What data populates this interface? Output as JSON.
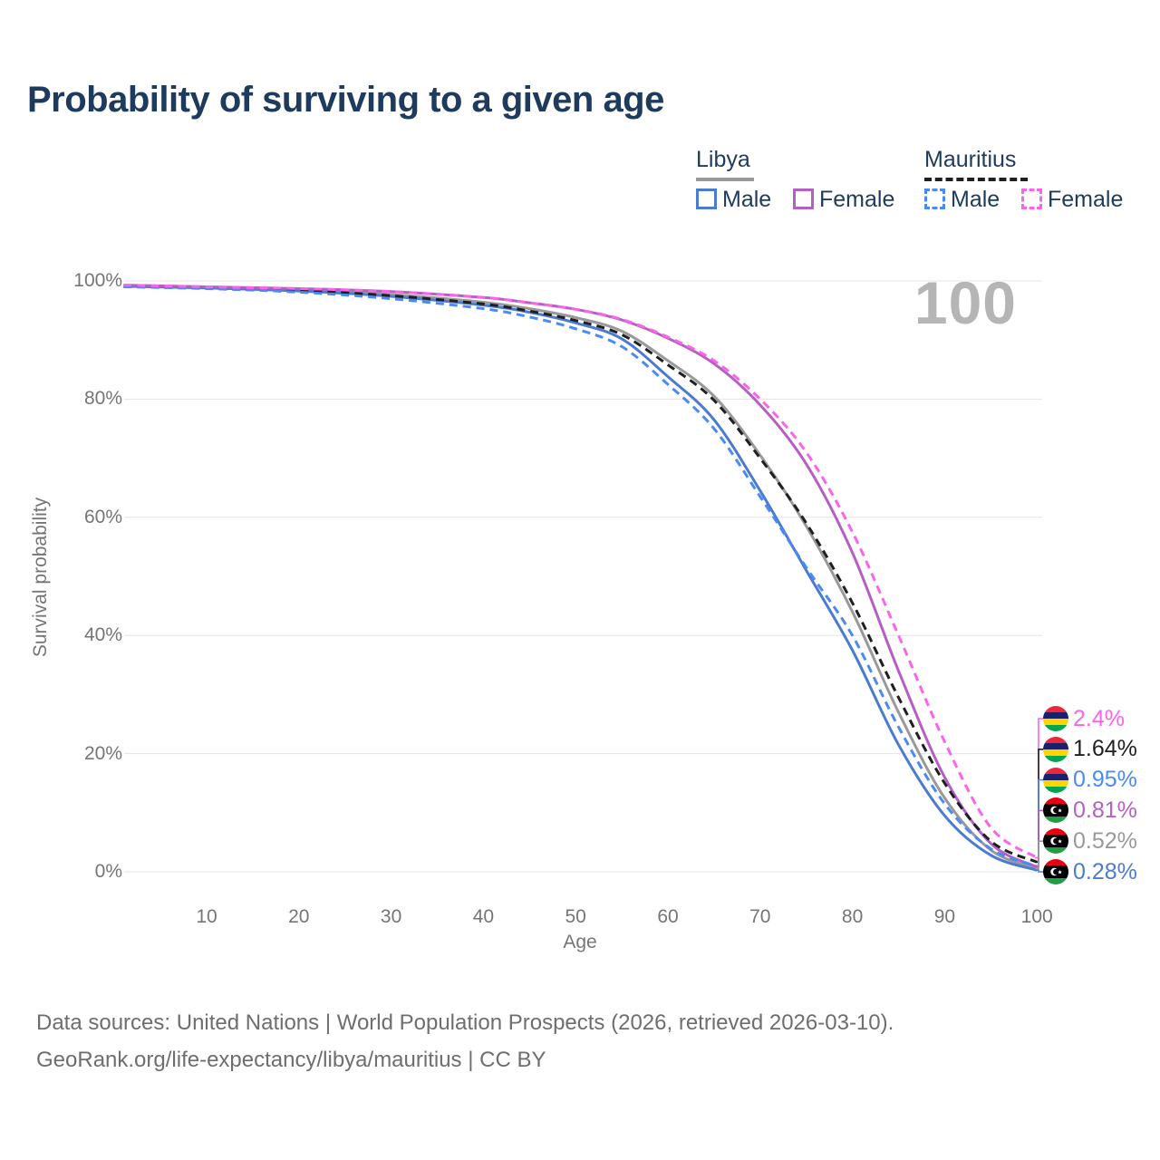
{
  "title": "Probability of surviving to a given age",
  "watermark": "100",
  "legend": {
    "groups": [
      {
        "name": "Libya",
        "style": "solid",
        "underline_color": "#999999",
        "entries": [
          {
            "label": "Male",
            "color": "#4a7bd0"
          },
          {
            "label": "Female",
            "color": "#b55fc4"
          }
        ]
      },
      {
        "name": "Mauritius",
        "style": "dashed",
        "underline_color": "#1f1f1f",
        "entries": [
          {
            "label": "Male",
            "color": "#4a8af4"
          },
          {
            "label": "Female",
            "color": "#fa64ea"
          }
        ]
      }
    ]
  },
  "chart_data": {
    "type": "line",
    "title": "Probability of surviving to a given age",
    "xlabel": "Age",
    "ylabel": "Survival probability",
    "xlim": [
      1,
      100
    ],
    "ylim": [
      0,
      100
    ],
    "grid": "horizontal",
    "legend_position": "top-right",
    "xticks": [
      10,
      20,
      30,
      40,
      50,
      60,
      70,
      80,
      90,
      100
    ],
    "yticks": [
      {
        "value": 0,
        "label": "0%"
      },
      {
        "value": 20,
        "label": "20%"
      },
      {
        "value": 40,
        "label": "40%"
      },
      {
        "value": 60,
        "label": "60%"
      },
      {
        "value": 80,
        "label": "80%"
      },
      {
        "value": 100,
        "label": "100%"
      }
    ],
    "series": [
      {
        "id": "libya-all",
        "name": "Libya — Both sexes",
        "country": "Libya",
        "sex": "both",
        "line": "solid",
        "color": "#999999",
        "end_value": 0.52,
        "end_label": "0.52%",
        "points": [
          [
            1,
            99.2
          ],
          [
            10,
            98.9
          ],
          [
            20,
            98.5
          ],
          [
            30,
            97.7
          ],
          [
            40,
            96.4
          ],
          [
            45,
            95.3
          ],
          [
            50,
            93.8
          ],
          [
            55,
            91.5
          ],
          [
            60,
            86.5
          ],
          [
            65,
            80.5
          ],
          [
            70,
            70.5
          ],
          [
            75,
            58.5
          ],
          [
            80,
            44.0
          ],
          [
            85,
            27.0
          ],
          [
            90,
            12.5
          ],
          [
            95,
            3.7
          ],
          [
            100,
            0.52
          ]
        ]
      },
      {
        "id": "libya-male",
        "name": "Libya — Male",
        "country": "Libya",
        "sex": "male",
        "line": "solid",
        "color": "#4a7bd0",
        "end_value": 0.28,
        "end_label": "0.28%",
        "points": [
          [
            1,
            99.1
          ],
          [
            10,
            98.8
          ],
          [
            20,
            98.3
          ],
          [
            30,
            97.4
          ],
          [
            40,
            95.9
          ],
          [
            45,
            94.7
          ],
          [
            50,
            92.9
          ],
          [
            55,
            90.2
          ],
          [
            60,
            83.8
          ],
          [
            65,
            76.5
          ],
          [
            70,
            64.5
          ],
          [
            75,
            51.0
          ],
          [
            80,
            37.5
          ],
          [
            85,
            21.5
          ],
          [
            90,
            9.5
          ],
          [
            95,
            2.8
          ],
          [
            100,
            0.28
          ]
        ]
      },
      {
        "id": "libya-female",
        "name": "Libya — Female",
        "country": "Libya",
        "sex": "female",
        "line": "solid",
        "color": "#b55fc4",
        "end_value": 0.81,
        "end_label": "0.81%",
        "points": [
          [
            1,
            99.3
          ],
          [
            10,
            99.0
          ],
          [
            20,
            98.7
          ],
          [
            30,
            98.2
          ],
          [
            40,
            97.2
          ],
          [
            45,
            96.3
          ],
          [
            50,
            95.2
          ],
          [
            55,
            93.4
          ],
          [
            60,
            90.3
          ],
          [
            65,
            86.0
          ],
          [
            70,
            79.0
          ],
          [
            75,
            69.0
          ],
          [
            80,
            54.0
          ],
          [
            85,
            34.0
          ],
          [
            90,
            16.0
          ],
          [
            95,
            4.8
          ],
          [
            100,
            0.81
          ]
        ]
      },
      {
        "id": "mauritius-all",
        "name": "Mauritius — Both sexes",
        "country": "Mauritius",
        "sex": "both",
        "line": "dashed",
        "color": "#1f1f1f",
        "end_value": 1.64,
        "end_label": "1.64%",
        "points": [
          [
            1,
            99.1
          ],
          [
            10,
            98.8
          ],
          [
            20,
            98.4
          ],
          [
            30,
            97.5
          ],
          [
            40,
            96.1
          ],
          [
            45,
            94.9
          ],
          [
            50,
            93.3
          ],
          [
            55,
            90.9
          ],
          [
            60,
            85.8
          ],
          [
            65,
            79.8
          ],
          [
            70,
            70.0
          ],
          [
            75,
            59.0
          ],
          [
            80,
            45.5
          ],
          [
            85,
            29.5
          ],
          [
            90,
            15.0
          ],
          [
            95,
            5.2
          ],
          [
            100,
            1.64
          ]
        ]
      },
      {
        "id": "mauritius-male",
        "name": "Mauritius — Male",
        "country": "Mauritius",
        "sex": "male",
        "line": "dashed",
        "color": "#4a8af4",
        "end_value": 0.95,
        "end_label": "0.95%",
        "points": [
          [
            1,
            99.0
          ],
          [
            10,
            98.7
          ],
          [
            20,
            98.1
          ],
          [
            30,
            97.0
          ],
          [
            40,
            95.3
          ],
          [
            45,
            93.9
          ],
          [
            50,
            91.9
          ],
          [
            55,
            88.9
          ],
          [
            60,
            82.5
          ],
          [
            65,
            75.0
          ],
          [
            70,
            63.5
          ],
          [
            75,
            51.5
          ],
          [
            80,
            40.0
          ],
          [
            85,
            24.5
          ],
          [
            90,
            11.5
          ],
          [
            95,
            3.9
          ],
          [
            100,
            0.95
          ]
        ]
      },
      {
        "id": "mauritius-female",
        "name": "Mauritius — Female",
        "country": "Mauritius",
        "sex": "female",
        "line": "dashed",
        "color": "#fa64ea",
        "end_value": 2.4,
        "end_label": "2.4%",
        "points": [
          [
            1,
            99.3
          ],
          [
            10,
            99.0
          ],
          [
            20,
            98.7
          ],
          [
            30,
            98.2
          ],
          [
            40,
            97.2
          ],
          [
            45,
            96.3
          ],
          [
            50,
            95.2
          ],
          [
            55,
            93.5
          ],
          [
            60,
            90.5
          ],
          [
            65,
            86.5
          ],
          [
            70,
            80.0
          ],
          [
            75,
            71.0
          ],
          [
            80,
            57.5
          ],
          [
            85,
            40.0
          ],
          [
            90,
            22.0
          ],
          [
            95,
            7.5
          ],
          [
            100,
            2.4
          ]
        ]
      }
    ]
  },
  "footer": {
    "line1": "Data sources: United Nations | World Population Prospects (2026, retrieved 2026-03-10).",
    "line2": "GeoRank.org/life-expectancy/libya/mauritius | CC BY"
  }
}
